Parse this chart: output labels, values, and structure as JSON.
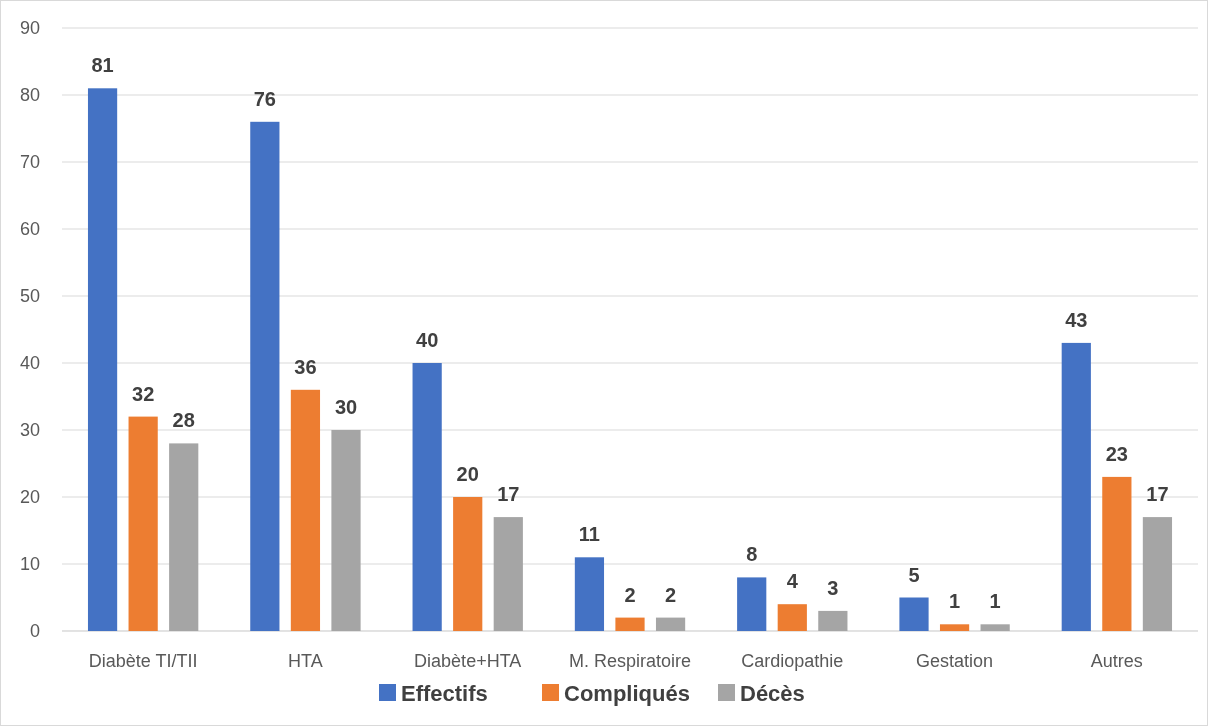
{
  "chart_data": {
    "type": "bar",
    "categories": [
      "Diabète TI/TII",
      "HTA",
      "Diabète+HTA",
      "M. Respiratoire",
      "Cardiopathie",
      "Gestation",
      "Autres"
    ],
    "series": [
      {
        "name": "Effectifs",
        "color": "#4472c4",
        "values": [
          81,
          76,
          40,
          11,
          8,
          5,
          43
        ]
      },
      {
        "name": "Compliqués",
        "color": "#ed7d31",
        "values": [
          32,
          36,
          20,
          2,
          4,
          1,
          23
        ]
      },
      {
        "name": "Décès",
        "color": "#a5a5a5",
        "values": [
          28,
          30,
          17,
          2,
          3,
          1,
          17
        ]
      }
    ],
    "ylim": [
      0,
      90
    ],
    "yticks": [
      0,
      10,
      20,
      30,
      40,
      50,
      60,
      70,
      80,
      90
    ],
    "grid": "y",
    "legend": "bottom",
    "data_labels": true
  }
}
